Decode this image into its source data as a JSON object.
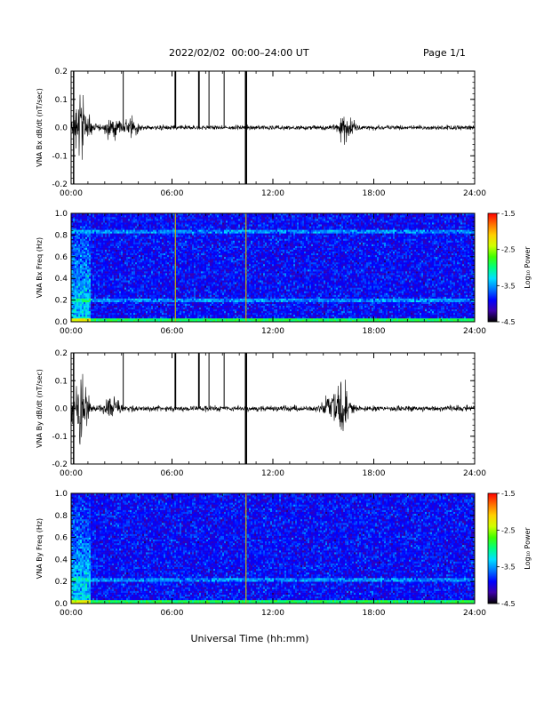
{
  "header": {
    "title": "2022/02/02  00:00–24:00 UT",
    "page": "Page 1/1"
  },
  "x_axis": {
    "label": "Universal Time (hh:mm)",
    "ticks": [
      "00:00",
      "06:00",
      "12:00",
      "18:00",
      "24:00"
    ],
    "range_hours": [
      0,
      24
    ]
  },
  "colorbar": {
    "label": "Log₁₀ Power",
    "ticks": [
      "-1.5",
      "-2.5",
      "-3.5",
      "-4.5"
    ],
    "range": [
      -4.5,
      -1.5
    ],
    "colors": [
      "#000000",
      "#3d00a8",
      "#0000ff",
      "#0078ff",
      "#00e0ff",
      "#00ff80",
      "#40ff00",
      "#d0ff00",
      "#ffd000",
      "#ff7000",
      "#ff0000"
    ]
  },
  "chart_data": [
    {
      "type": "line",
      "title": "",
      "ylabel": "VNA Bx dB/dt (nT/sec)",
      "ylim": [
        -0.2,
        0.2
      ],
      "yticks": [
        "0.2",
        "0.1",
        "0.0",
        "-0.1",
        "-0.2"
      ],
      "xlim": [
        0,
        24
      ],
      "spikes_hours": [
        3.1,
        6.2,
        7.6,
        8.2,
        9.1,
        10.4
      ],
      "bursts": [
        {
          "center_hours": 0.6,
          "amplitude": 0.15
        },
        {
          "center_hours": 2.5,
          "amplitude": 0.05
        },
        {
          "center_hours": 3.5,
          "amplitude": 0.04
        },
        {
          "center_hours": 16.3,
          "amplitude": 0.06
        }
      ],
      "baseline_amplitude": 0.012
    },
    {
      "type": "heatmap",
      "ylabel": "VNA Bx Freq (Hz)",
      "ylim": [
        0.0,
        1.0
      ],
      "yticks": [
        "1.0",
        "0.8",
        "0.6",
        "0.4",
        "0.2",
        "0.0"
      ],
      "xlim": [
        0,
        24
      ],
      "value_range": [
        -4.5,
        -1.5
      ],
      "background_level": -3.9,
      "low_freq_level": -2.9,
      "bands_hz": [
        0.2,
        0.83
      ],
      "vertical_lines_hours": [
        6.2,
        10.4
      ],
      "early_activity_hours": [
        0,
        1.2
      ]
    },
    {
      "type": "line",
      "title": "",
      "ylabel": "VNA By dB/dt (nT/sec)",
      "ylim": [
        -0.2,
        0.2
      ],
      "yticks": [
        "0.2",
        "0.1",
        "0.0",
        "-0.1",
        "-0.2"
      ],
      "xlim": [
        0,
        24
      ],
      "spikes_hours": [
        3.1,
        6.2,
        7.6,
        8.2,
        9.1,
        10.4
      ],
      "bursts": [
        {
          "center_hours": 0.5,
          "amplitude": 0.15
        },
        {
          "center_hours": 2.5,
          "amplitude": 0.06
        },
        {
          "center_hours": 15.5,
          "amplitude": 0.08
        },
        {
          "center_hours": 16.2,
          "amplitude": 0.1
        }
      ],
      "baseline_amplitude": 0.015
    },
    {
      "type": "heatmap",
      "ylabel": "VNA By Freq (Hz)",
      "ylim": [
        0.0,
        1.0
      ],
      "yticks": [
        "1.0",
        "0.8",
        "0.6",
        "0.4",
        "0.2",
        "0.0"
      ],
      "xlim": [
        0,
        24
      ],
      "value_range": [
        -4.5,
        -1.5
      ],
      "background_level": -3.9,
      "low_freq_level": -2.9,
      "bands_hz": [
        0.22
      ],
      "vertical_lines_hours": [
        10.4
      ],
      "early_activity_hours": [
        0,
        1.2
      ]
    }
  ]
}
